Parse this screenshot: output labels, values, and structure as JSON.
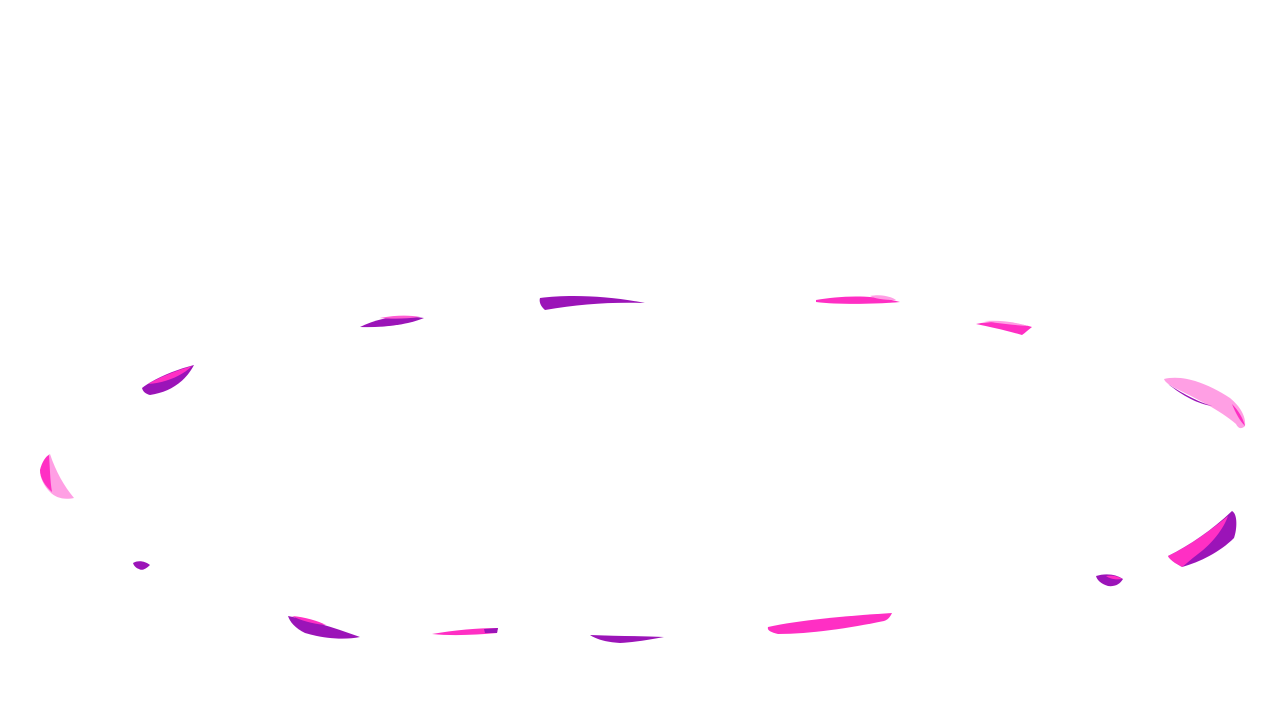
{
  "scene": {
    "background": "#ffffff",
    "description_name": "petal-ring",
    "colors": {
      "purple": "#9b14b8",
      "hot_pink": "#ff2fc4",
      "light_pink": "#ff9fe4",
      "mid_pink": "#ff5fd2"
    }
  }
}
